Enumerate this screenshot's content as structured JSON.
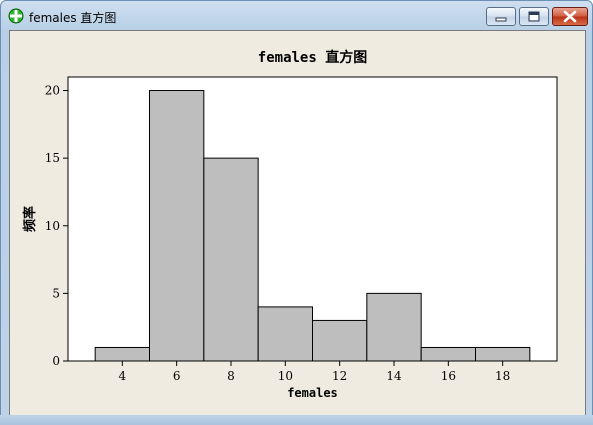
{
  "window": {
    "title": "females 直方图"
  },
  "colors": {
    "bar_fill": "#bebebe",
    "bar_stroke": "#000000",
    "plot_bg": "#ffffff",
    "frame_bg": "#efebe1",
    "icon_green": "#2fb82f"
  },
  "icons": {
    "app": "minitab-crosshair-icon",
    "minimize": "minimize-icon",
    "maximize": "maximize-icon",
    "close": "close-icon"
  },
  "chart_data": {
    "type": "bar",
    "title": "females 直方图",
    "xlabel": "females",
    "ylabel": "频率",
    "bins": [
      {
        "start": 3,
        "end": 5,
        "count": 1
      },
      {
        "start": 5,
        "end": 7,
        "count": 20
      },
      {
        "start": 7,
        "end": 9,
        "count": 15
      },
      {
        "start": 9,
        "end": 11,
        "count": 4
      },
      {
        "start": 11,
        "end": 13,
        "count": 3
      },
      {
        "start": 13,
        "end": 15,
        "count": 5
      },
      {
        "start": 15,
        "end": 17,
        "count": 1
      },
      {
        "start": 17,
        "end": 19,
        "count": 1
      }
    ],
    "x_ticks": [
      4,
      6,
      8,
      10,
      12,
      14,
      16,
      18
    ],
    "y_ticks": [
      0,
      5,
      10,
      15,
      20
    ],
    "xlim": [
      2.0,
      20.0
    ],
    "ylim": [
      0,
      21
    ],
    "grid": false,
    "legend": "none"
  }
}
